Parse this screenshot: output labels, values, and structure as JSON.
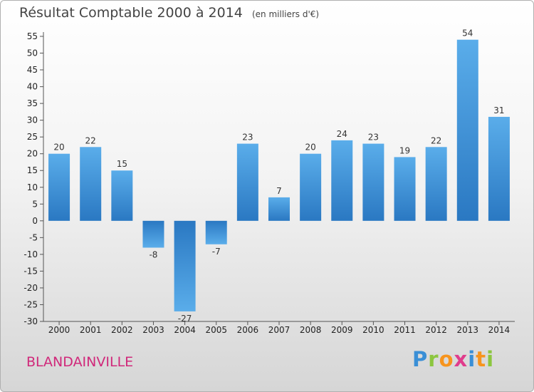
{
  "title": "Résultat Comptable 2000 à 2014",
  "subtitle": "(en milliers d'€)",
  "town": "BLANDAINVILLE",
  "logo": {
    "text": "Proxiti",
    "letters": [
      {
        "ch": "P",
        "color": "#3a8fd6"
      },
      {
        "ch": "r",
        "color": "#8cc63f"
      },
      {
        "ch": "o",
        "color": "#f7941d"
      },
      {
        "ch": "x",
        "color": "#e03c8c"
      },
      {
        "ch": "i",
        "color": "#3a8fd6"
      },
      {
        "ch": "t",
        "color": "#f7941d"
      },
      {
        "ch": "i",
        "color": "#8cc63f"
      }
    ]
  },
  "chart_data": {
    "type": "bar",
    "title": "Résultat Comptable 2000 à 2014",
    "subtitle": "(en milliers d'€)",
    "categories": [
      "2000",
      "2001",
      "2002",
      "2003",
      "2004",
      "2005",
      "2006",
      "2007",
      "2008",
      "2009",
      "2010",
      "2011",
      "2012",
      "2013",
      "2014"
    ],
    "values": [
      20,
      22,
      15,
      -8,
      -27,
      -7,
      23,
      7,
      20,
      24,
      23,
      19,
      22,
      54,
      31
    ],
    "ylim": [
      -30,
      55
    ],
    "yticks": [
      -30,
      -25,
      -20,
      -15,
      -10,
      -5,
      0,
      5,
      10,
      15,
      20,
      25,
      30,
      35,
      40,
      45,
      50,
      55
    ],
    "grid": false,
    "bar_color": "#3d8fd6"
  }
}
